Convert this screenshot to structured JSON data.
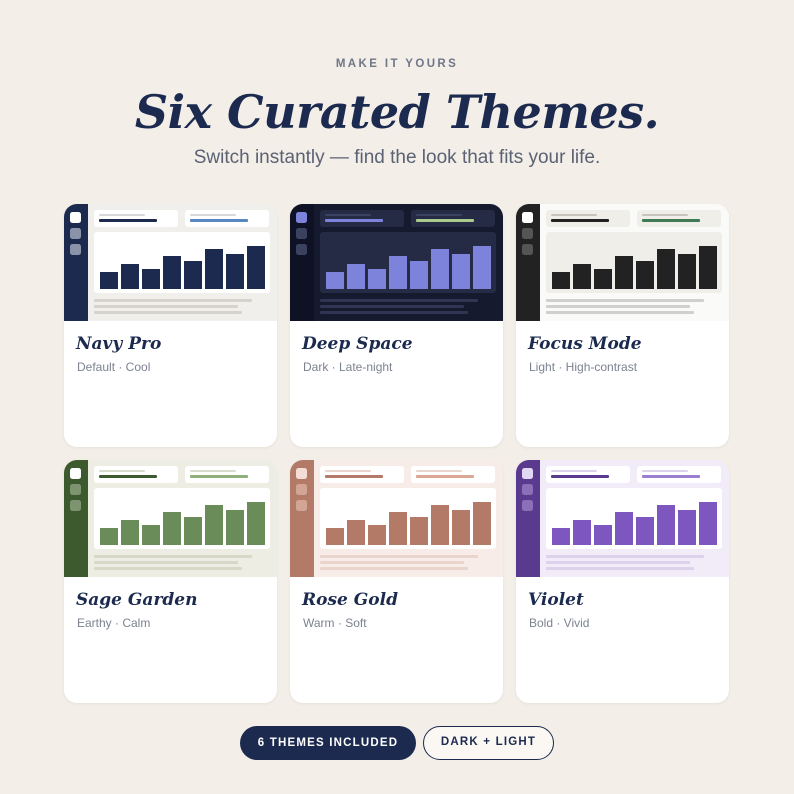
{
  "eyebrow": "MAKE IT YOURS",
  "headline": "Six Curated Themes.",
  "subhead": "Switch instantly — find the look that fits your life.",
  "themes": [
    {
      "name": "Navy Pro",
      "desc": "Default · Cool",
      "colors": {
        "sidebar": "#1b2a4e",
        "bg": "#f1efeb",
        "dot": "#8a93a8",
        "dot_active": "#ffffff",
        "pill": "#ffffff",
        "pill_line": "#d8d8dc",
        "accent1": "#1b2a4e",
        "accent2": "#5a87c2",
        "panel": "#ffffff",
        "bar": "#1b2a4e",
        "line": "#d6d3cf"
      },
      "levels": [
        0.32,
        0.48,
        0.37,
        0.62,
        0.53,
        0.75,
        0.66,
        0.82
      ]
    },
    {
      "name": "Deep Space",
      "desc": "Dark · Late-night",
      "colors": {
        "sidebar": "#0e1224",
        "bg": "#151a2e",
        "dot": "#3b4260",
        "dot_active": "#7d82da",
        "pill": "#252b45",
        "pill_line": "#3a4163",
        "accent1": "#7d82da",
        "accent2": "#a9c98d",
        "panel": "#252b45",
        "bar": "#7d82da",
        "line": "#2f3552"
      },
      "levels": [
        0.32,
        0.48,
        0.37,
        0.62,
        0.53,
        0.75,
        0.66,
        0.82
      ]
    },
    {
      "name": "Focus Mode",
      "desc": "Light · High-contrast",
      "colors": {
        "sidebar": "#222222",
        "bg": "#fafaf8",
        "dot": "#555555",
        "dot_active": "#ffffff",
        "pill": "#efeee9",
        "pill_line": "#c9c3c0",
        "accent1": "#222222",
        "accent2": "#3f7a55",
        "panel": "#efeee9",
        "bar": "#222222",
        "line": "#d0d0d0"
      },
      "levels": [
        0.32,
        0.48,
        0.37,
        0.62,
        0.53,
        0.75,
        0.66,
        0.82
      ]
    },
    {
      "name": "Sage Garden",
      "desc": "Earthy · Calm",
      "colors": {
        "sidebar": "#3d5a2e",
        "bg": "#eeede4",
        "dot": "#7e9470",
        "dot_active": "#ffffff",
        "pill": "#ffffff",
        "pill_line": "#d8dccd",
        "accent1": "#3d5a2e",
        "accent2": "#8fb07c",
        "panel": "#ffffff",
        "bar": "#6a8c58",
        "line": "#d6d8c8"
      },
      "levels": [
        0.32,
        0.48,
        0.37,
        0.62,
        0.53,
        0.75,
        0.66,
        0.82
      ]
    },
    {
      "name": "Rose Gold",
      "desc": "Warm · Soft",
      "colors": {
        "sidebar": "#b47a68",
        "bg": "#f8ece8",
        "dot": "#d2a596",
        "dot_active": "#f3ddd5",
        "pill": "#ffffff",
        "pill_line": "#ead5cd",
        "accent1": "#b47a68",
        "accent2": "#d9a793",
        "panel": "#ffffff",
        "bar": "#b47a68",
        "line": "#ead5cd"
      },
      "levels": [
        0.32,
        0.48,
        0.37,
        0.62,
        0.53,
        0.75,
        0.66,
        0.82
      ]
    },
    {
      "name": "Violet",
      "desc": "Bold · Vivid",
      "colors": {
        "sidebar": "#5a3a8e",
        "bg": "#f1ecf7",
        "dot": "#8a70b8",
        "dot_active": "#e3d8f3",
        "pill": "#ffffff",
        "pill_line": "#ddd2ec",
        "accent1": "#5a3a8e",
        "accent2": "#9a7fd0",
        "panel": "#ffffff",
        "bar": "#7e56c0",
        "line": "#ddd2ec"
      },
      "levels": [
        0.32,
        0.48,
        0.37,
        0.62,
        0.53,
        0.75,
        0.66,
        0.82
      ]
    }
  ],
  "badges": {
    "themes_count": "6 THEMES INCLUDED",
    "modes": "DARK + LIGHT"
  }
}
